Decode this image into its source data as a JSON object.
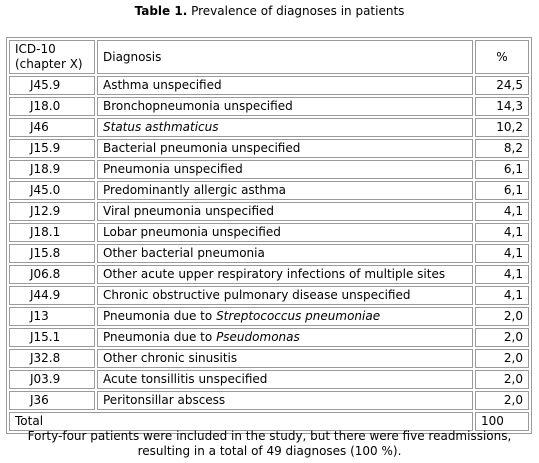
{
  "title": {
    "label": "Table 1.",
    "text": "Prevalence of diagnoses in patients"
  },
  "header": [
    "ICD-10 (chapter X)",
    "Diagnosis",
    "%"
  ],
  "rows": [
    {
      "code": "J45.9",
      "diagnosis": [
        {
          "text": "Asthma unspecified",
          "italic": false
        }
      ],
      "percent": "24,5"
    },
    {
      "code": "J18.0",
      "diagnosis": [
        {
          "text": "Bronchopneumonia unspecified",
          "italic": false
        }
      ],
      "percent": "14,3"
    },
    {
      "code": "J46",
      "diagnosis": [
        {
          "text": "Status asthmaticus",
          "italic": true
        }
      ],
      "percent": "10,2"
    },
    {
      "code": "J15.9",
      "diagnosis": [
        {
          "text": "Bacterial pneumonia unspecified",
          "italic": false
        }
      ],
      "percent": "8,2"
    },
    {
      "code": "J18.9",
      "diagnosis": [
        {
          "text": "Pneumonia unspecified",
          "italic": false
        }
      ],
      "percent": "6,1"
    },
    {
      "code": "J45.0",
      "diagnosis": [
        {
          "text": "Predominantly allergic asthma",
          "italic": false
        }
      ],
      "percent": "6,1"
    },
    {
      "code": "J12.9",
      "diagnosis": [
        {
          "text": "Viral pneumonia unspecified",
          "italic": false
        }
      ],
      "percent": "4,1"
    },
    {
      "code": "J18.1",
      "diagnosis": [
        {
          "text": "Lobar pneumonia unspecified",
          "italic": false
        }
      ],
      "percent": "4,1"
    },
    {
      "code": "J15.8",
      "diagnosis": [
        {
          "text": "Other bacterial pneumonia",
          "italic": false
        }
      ],
      "percent": "4,1"
    },
    {
      "code": "J06.8",
      "diagnosis": [
        {
          "text": "Other acute upper respiratory infections of multiple sites",
          "italic": false
        }
      ],
      "percent": "4,1"
    },
    {
      "code": "J44.9",
      "diagnosis": [
        {
          "text": "Chronic obstructive pulmonary disease unspecified",
          "italic": false
        }
      ],
      "percent": "4,1"
    },
    {
      "code": "J13",
      "diagnosis": [
        {
          "text": "Pneumonia due to",
          "italic": false
        },
        {
          "text": "Streptococcus pneumoniae",
          "italic": true
        }
      ],
      "percent": "2,0"
    },
    {
      "code": "J15.1",
      "diagnosis": [
        {
          "text": "Pneumonia due to",
          "italic": false
        },
        {
          "text": "Pseudomonas",
          "italic": true
        }
      ],
      "percent": "2,0"
    },
    {
      "code": "J32.8",
      "diagnosis": [
        {
          "text": "Other chronic sinusitis",
          "italic": false
        }
      ],
      "percent": "2,0"
    },
    {
      "code": "J03.9",
      "diagnosis": [
        {
          "text": "Acute tonsillitis unspecified",
          "italic": false
        }
      ],
      "percent": "2,0"
    },
    {
      "code": "J36",
      "diagnosis": [
        {
          "text": "Peritonsillar abscess",
          "italic": false
        }
      ],
      "percent": "2,0"
    }
  ],
  "total": {
    "label": "Total",
    "percent": "100"
  },
  "note": "Forty-four patients were included in the study, but there were five readmissions, resulting in a total of 49 diagnoses (100 %)."
}
